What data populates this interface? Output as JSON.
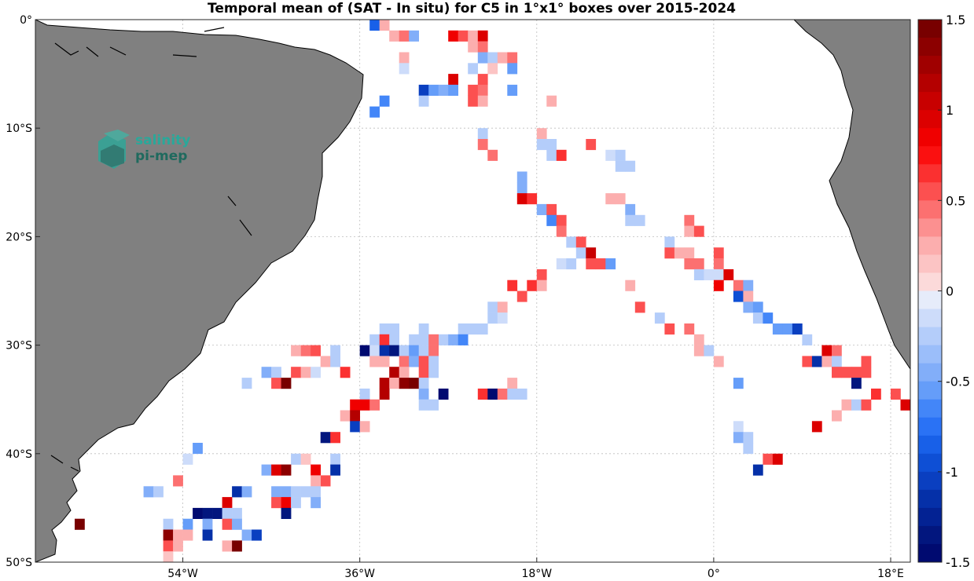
{
  "chart_data": {
    "type": "heatmap",
    "title": "Temporal mean of (SAT - In situ) for C5 in 1°x1° boxes over 2015-2024",
    "logo": {
      "line1": "salinity",
      "line2": "pi-mep"
    },
    "xlim": [
      -69,
      20
    ],
    "ylim": [
      -50,
      0
    ],
    "grid": true,
    "x_ticks": [
      {
        "v": -54,
        "label": "54°W"
      },
      {
        "v": -36,
        "label": "36°W"
      },
      {
        "v": -18,
        "label": "18°W"
      },
      {
        "v": 0,
        "label": "0°"
      },
      {
        "v": 18,
        "label": "18°E"
      }
    ],
    "y_ticks": [
      {
        "v": 0,
        "label": "0°"
      },
      {
        "v": -10,
        "label": "10°S"
      },
      {
        "v": -20,
        "label": "20°S"
      },
      {
        "v": -30,
        "label": "30°S"
      },
      {
        "v": -40,
        "label": "40°S"
      },
      {
        "v": -50,
        "label": "50°S"
      }
    ],
    "colorbar": {
      "range": [
        -1.5,
        1.5
      ],
      "ticks": [
        {
          "v": 1.5,
          "label": "1.5"
        },
        {
          "v": 1,
          "label": "1"
        },
        {
          "v": 0.5,
          "label": "0.5"
        },
        {
          "v": 0,
          "label": "0"
        },
        {
          "v": -0.5,
          "label": "-0.5"
        },
        {
          "v": -1,
          "label": "-1"
        },
        {
          "v": -1.5,
          "label": "-1.5"
        }
      ],
      "colors": [
        "#fcdada",
        "#fcc4c4",
        "#fcaeae",
        "#fc9090",
        "#fc7070",
        "#fc5050",
        "#fb3030",
        "#fb1010",
        "#f00000",
        "#dc0000",
        "#c80000",
        "#b40000",
        "#a00000",
        "#8c0000",
        "#780000",
        "#e6ecfa",
        "#cddcfa",
        "#b4cdfa",
        "#9bbefa",
        "#82aef9",
        "#659df9",
        "#4386f8",
        "#2a72f5",
        "#1860e8",
        "#0e4fd5",
        "#0a3fc0",
        "#0530a8",
        "#032293",
        "#02167e",
        "#000a70"
      ]
    },
    "cells": [
      [
        -35,
        0,
        -0.8
      ],
      [
        -34,
        0,
        0.2
      ],
      [
        -33,
        -1,
        0.2
      ],
      [
        -32,
        -1,
        0.4
      ],
      [
        -31,
        -1,
        -0.4
      ],
      [
        -27,
        -1,
        0.8
      ],
      [
        -26,
        -1,
        0.5
      ],
      [
        -25,
        -1,
        0.2
      ],
      [
        -24,
        -1,
        0.9
      ],
      [
        -25,
        -2,
        0.3
      ],
      [
        -24,
        -2,
        0.4
      ],
      [
        -32,
        -3,
        0.3
      ],
      [
        -24,
        -3,
        -0.4
      ],
      [
        -23,
        -3,
        -0.2
      ],
      [
        -22,
        -3,
        0.2
      ],
      [
        -21,
        -3,
        0.4
      ],
      [
        -32,
        -4,
        -0.15
      ],
      [
        -25,
        -4,
        -0.2
      ],
      [
        -23,
        -4,
        0.15
      ],
      [
        -27,
        -5,
        0.9
      ],
      [
        -24,
        -5,
        0.6
      ],
      [
        -21,
        -4,
        -0.5
      ],
      [
        -30,
        -6,
        -1
      ],
      [
        -29,
        -6,
        -0.6
      ],
      [
        -28,
        -6,
        -0.4
      ],
      [
        -27,
        -6,
        -0.6
      ],
      [
        -25,
        -6,
        0.6
      ],
      [
        -24,
        -6,
        0.4
      ],
      [
        -21,
        -6,
        -0.6
      ],
      [
        -34,
        -7,
        -0.7
      ],
      [
        -30,
        -7,
        -0.3
      ],
      [
        -25,
        -7,
        0.5
      ],
      [
        -24,
        -7,
        0.2
      ],
      [
        -17,
        -7,
        0.3
      ],
      [
        -35,
        -8,
        -0.7
      ],
      [
        -24,
        -10,
        -0.2
      ],
      [
        -18,
        -10,
        0.3
      ],
      [
        -24,
        -11,
        0.4
      ],
      [
        -18,
        -11,
        -0.3
      ],
      [
        -17,
        -11,
        -0.2
      ],
      [
        -13,
        -11,
        0.6
      ],
      [
        -23,
        -12,
        0.4
      ],
      [
        -17,
        -12,
        -0.3
      ],
      [
        -16,
        -12,
        0.7
      ],
      [
        -11,
        -12,
        -0.1
      ],
      [
        -10,
        -12,
        -0.2
      ],
      [
        -10,
        -13,
        -0.3
      ],
      [
        -9,
        -13,
        -0.3
      ],
      [
        -20,
        -14,
        -0.4
      ],
      [
        -20,
        -15,
        -0.4
      ],
      [
        -20,
        -16,
        0.9
      ],
      [
        -19,
        -16,
        0.7
      ],
      [
        -11,
        -16,
        0.2
      ],
      [
        -10,
        -16,
        0.3
      ],
      [
        -18,
        -17,
        -0.4
      ],
      [
        -17,
        -17,
        0.5
      ],
      [
        -9,
        -17,
        -0.4
      ],
      [
        -17,
        -18,
        -0.7
      ],
      [
        -16,
        -18,
        0.6
      ],
      [
        -9,
        -18,
        -0.3
      ],
      [
        -8,
        -18,
        -0.2
      ],
      [
        -3,
        -18,
        0.4
      ],
      [
        -3,
        -19,
        0.3
      ],
      [
        -2,
        -19,
        0.6
      ],
      [
        -16,
        -19,
        0.4
      ],
      [
        -15,
        -20,
        -0.2
      ],
      [
        -14,
        -20,
        0.5
      ],
      [
        -5,
        -20,
        -0.3
      ],
      [
        -14,
        -21,
        -0.3
      ],
      [
        -13,
        -21,
        1.0
      ],
      [
        -5,
        -21,
        0.5
      ],
      [
        -4,
        -21,
        0.3
      ],
      [
        -3,
        -21,
        0.2
      ],
      [
        0,
        -21,
        0.5
      ],
      [
        -16,
        -22,
        -0.1
      ],
      [
        -15,
        -22,
        -0.2
      ],
      [
        -13,
        -22,
        0.5
      ],
      [
        -12,
        -22,
        0.5
      ],
      [
        -11,
        -22,
        -0.6
      ],
      [
        -3,
        -22,
        0.4
      ],
      [
        -2,
        -22,
        0.4
      ],
      [
        0,
        -22,
        0.4
      ],
      [
        -2,
        -23,
        -0.2
      ],
      [
        -1,
        -23,
        -0.1
      ],
      [
        0,
        -23,
        -0.1
      ],
      [
        1,
        -23,
        0.9
      ],
      [
        -18,
        -23,
        0.6
      ],
      [
        -21,
        -24,
        0.7
      ],
      [
        -19,
        -24,
        0.7
      ],
      [
        -18,
        -24,
        0.3
      ],
      [
        -9,
        -24,
        0.2
      ],
      [
        0,
        -24,
        0.8
      ],
      [
        2,
        -24,
        0.4
      ],
      [
        3,
        -24,
        -0.4
      ],
      [
        -20,
        -25,
        0.6
      ],
      [
        2,
        -25,
        -0.9
      ],
      [
        3,
        -25,
        0.2
      ],
      [
        -23,
        -26,
        -0.3
      ],
      [
        -22,
        -26,
        0.2
      ],
      [
        -8,
        -26,
        0.5
      ],
      [
        3,
        -26,
        -0.4
      ],
      [
        4,
        -26,
        -0.6
      ],
      [
        -23,
        -27,
        -0.2
      ],
      [
        -22,
        -27,
        -0.1
      ],
      [
        -6,
        -27,
        -0.2
      ],
      [
        4,
        -27,
        -0.2
      ],
      [
        5,
        -27,
        -0.7
      ],
      [
        -26,
        -28,
        -0.2
      ],
      [
        -25,
        -28,
        -0.2
      ],
      [
        -24,
        -28,
        -0.2
      ],
      [
        -5,
        -28,
        0.5
      ],
      [
        -3,
        -28,
        0.4
      ],
      [
        6,
        -28,
        -0.5
      ],
      [
        7,
        -28,
        -0.6
      ],
      [
        8,
        -28,
        -1.0
      ],
      [
        -34,
        -28,
        -0.3
      ],
      [
        -33,
        -28,
        -0.3
      ],
      [
        -30,
        -28,
        -0.3
      ],
      [
        -28,
        -29,
        -0.2
      ],
      [
        -27,
        -29,
        -0.4
      ],
      [
        -26,
        -29,
        -0.7
      ],
      [
        -30,
        -29,
        -0.2
      ],
      [
        -29,
        -29,
        0.4
      ],
      [
        -2,
        -29,
        0.3
      ],
      [
        9,
        -29,
        -0.3
      ],
      [
        -35,
        -29,
        -0.3
      ],
      [
        -34,
        -29,
        0.7
      ],
      [
        -33,
        -29,
        -0.3
      ],
      [
        -31,
        -29,
        -0.2
      ],
      [
        -36,
        -30,
        -1.5
      ],
      [
        -35,
        -30,
        -0.1
      ],
      [
        -34,
        -30,
        -1.2
      ],
      [
        -33,
        -30,
        -1.4
      ],
      [
        -32,
        -30,
        -0.3
      ],
      [
        -31,
        -30,
        -0.5
      ],
      [
        -30,
        -30,
        -0.3
      ],
      [
        -29,
        -30,
        0.4
      ],
      [
        -2,
        -30,
        0.3
      ],
      [
        -1,
        -30,
        -0.2
      ],
      [
        11,
        -30,
        0.9
      ],
      [
        12,
        -30,
        0.4
      ],
      [
        -43,
        -30,
        0.2
      ],
      [
        -42,
        -30,
        0.4
      ],
      [
        -41,
        -30,
        0.6
      ],
      [
        -40,
        -31,
        0.2
      ],
      [
        -39,
        -30,
        -0.2
      ],
      [
        -39,
        -31,
        -0.2
      ],
      [
        -35,
        -31,
        0.3
      ],
      [
        -34,
        -31,
        0.3
      ],
      [
        -32,
        -31,
        0.4
      ],
      [
        -31,
        -31,
        -0.4
      ],
      [
        -30,
        -31,
        0.5
      ],
      [
        -29,
        -31,
        -0.3
      ],
      [
        0,
        -31,
        0.2
      ],
      [
        9,
        -31,
        0.6
      ],
      [
        10,
        -31,
        -1.2
      ],
      [
        11,
        -31,
        0.3
      ],
      [
        12,
        -31,
        -0.3
      ],
      [
        15,
        -31,
        0.6
      ],
      [
        -46,
        -32,
        -0.4
      ],
      [
        -45,
        -32,
        -0.2
      ],
      [
        -43,
        -32,
        0.6
      ],
      [
        -42,
        -32,
        0.3
      ],
      [
        -41,
        -32,
        -0.15
      ],
      [
        -38,
        -32,
        0.7
      ],
      [
        -33,
        -32,
        1.2
      ],
      [
        -32,
        -32,
        0.3
      ],
      [
        -30,
        -32,
        0.5
      ],
      [
        -29,
        -32,
        -0.2
      ],
      [
        12,
        -32,
        0.5
      ],
      [
        13,
        -32,
        0.5
      ],
      [
        14,
        -32,
        0.6
      ],
      [
        15,
        -32,
        0.6
      ],
      [
        -48,
        -33,
        -0.3
      ],
      [
        -45,
        -33,
        0.5
      ],
      [
        -44,
        -33,
        1.5
      ],
      [
        -34,
        -33,
        1.2
      ],
      [
        -33,
        -33,
        0.3
      ],
      [
        -32,
        -33,
        1.3
      ],
      [
        -31,
        -33,
        1.5
      ],
      [
        -30,
        -33,
        -0.2
      ],
      [
        -21,
        -33,
        0.2
      ],
      [
        2,
        -33,
        -0.5
      ],
      [
        14,
        -33,
        -1.3
      ],
      [
        -36,
        -34,
        -0.2
      ],
      [
        -34,
        -34,
        1.2
      ],
      [
        -30,
        -34,
        -0.4
      ],
      [
        -28,
        -34,
        -1.5
      ],
      [
        -24,
        -34,
        0.7
      ],
      [
        -23,
        -34,
        -1.5
      ],
      [
        -22,
        -34,
        0.4
      ],
      [
        -21,
        -34,
        -0.2
      ],
      [
        -20,
        -34,
        -0.3
      ],
      [
        16,
        -34,
        0.7
      ],
      [
        18,
        -34,
        0.6
      ],
      [
        -37,
        -35,
        0.8
      ],
      [
        -36,
        -35,
        0.8
      ],
      [
        -35,
        -35,
        0.4
      ],
      [
        -30,
        -35,
        -0.3
      ],
      [
        -29,
        -35,
        -0.3
      ],
      [
        13,
        -35,
        0.3
      ],
      [
        14,
        -35,
        -0.3
      ],
      [
        15,
        -35,
        0.5
      ],
      [
        19,
        -35,
        0.9
      ],
      [
        -38,
        -36,
        0.2
      ],
      [
        -37,
        -36,
        1.2
      ],
      [
        12,
        -36,
        0.3
      ],
      [
        -37,
        -37,
        -1.0
      ],
      [
        -36,
        -37,
        0.3
      ],
      [
        2,
        -37,
        -0.15
      ],
      [
        10,
        -37,
        0.9
      ],
      [
        -40,
        -38,
        -1.3
      ],
      [
        -39,
        -38,
        0.7
      ],
      [
        2,
        -38,
        -0.4
      ],
      [
        3,
        -38,
        -0.3
      ],
      [
        -53,
        -39,
        -0.5
      ],
      [
        3,
        -39,
        -0.2
      ],
      [
        -54,
        -40,
        -0.15
      ],
      [
        -43,
        -40,
        -0.2
      ],
      [
        -42,
        -40,
        0.15
      ],
      [
        -39,
        -40,
        -0.3
      ],
      [
        5,
        -40,
        0.5
      ],
      [
        6,
        -40,
        0.9
      ],
      [
        -46,
        -41,
        -0.4
      ],
      [
        -45,
        -41,
        0.9
      ],
      [
        -44,
        -41,
        1.4
      ],
      [
        -41,
        -41,
        0.8
      ],
      [
        -39,
        -41,
        -1.2
      ],
      [
        4,
        -41,
        -1.2
      ],
      [
        -55,
        -42,
        0.4
      ],
      [
        -40,
        -42,
        0.6
      ],
      [
        -41,
        -42,
        0.2
      ],
      [
        -58,
        -43,
        -0.4
      ],
      [
        -57,
        -43,
        -0.3
      ],
      [
        -49,
        -43,
        -1.1
      ],
      [
        -48,
        -43,
        -0.4
      ],
      [
        -45,
        -43,
        -0.4
      ],
      [
        -44,
        -43,
        -0.4
      ],
      [
        -43,
        -43,
        -0.3
      ],
      [
        -42,
        -43,
        -0.2
      ],
      [
        -41,
        -43,
        -0.3
      ],
      [
        -50,
        -44,
        0.9
      ],
      [
        -45,
        -44,
        0.5
      ],
      [
        -44,
        -44,
        0.8
      ],
      [
        -43,
        -44,
        -0.3
      ],
      [
        -41,
        -44,
        -0.4
      ],
      [
        -52,
        -45,
        -1.4
      ],
      [
        -51,
        -45,
        -1.4
      ],
      [
        -53,
        -45,
        -1.5
      ],
      [
        -50,
        -45,
        -0.2
      ],
      [
        -49,
        -45,
        -0.3
      ],
      [
        -44,
        -45,
        -1.3
      ],
      [
        -65,
        -46,
        1.5
      ],
      [
        -56,
        -46,
        -0.3
      ],
      [
        -54,
        -46,
        -0.5
      ],
      [
        -52,
        -46,
        -0.4
      ],
      [
        -50,
        -46,
        0.6
      ],
      [
        -49,
        -46,
        -0.4
      ],
      [
        -56,
        -47,
        1.4
      ],
      [
        -55,
        -47,
        0.2
      ],
      [
        -54,
        -47,
        0.2
      ],
      [
        -52,
        -47,
        -1.2
      ],
      [
        -48,
        -47,
        -0.4
      ],
      [
        -47,
        -47,
        -1.0
      ],
      [
        -56,
        -48,
        0.6
      ],
      [
        -55,
        -48,
        0.3
      ],
      [
        -50,
        -48,
        0.2
      ],
      [
        -49,
        -48,
        1.5
      ],
      [
        -56,
        -49,
        0.15
      ]
    ]
  }
}
